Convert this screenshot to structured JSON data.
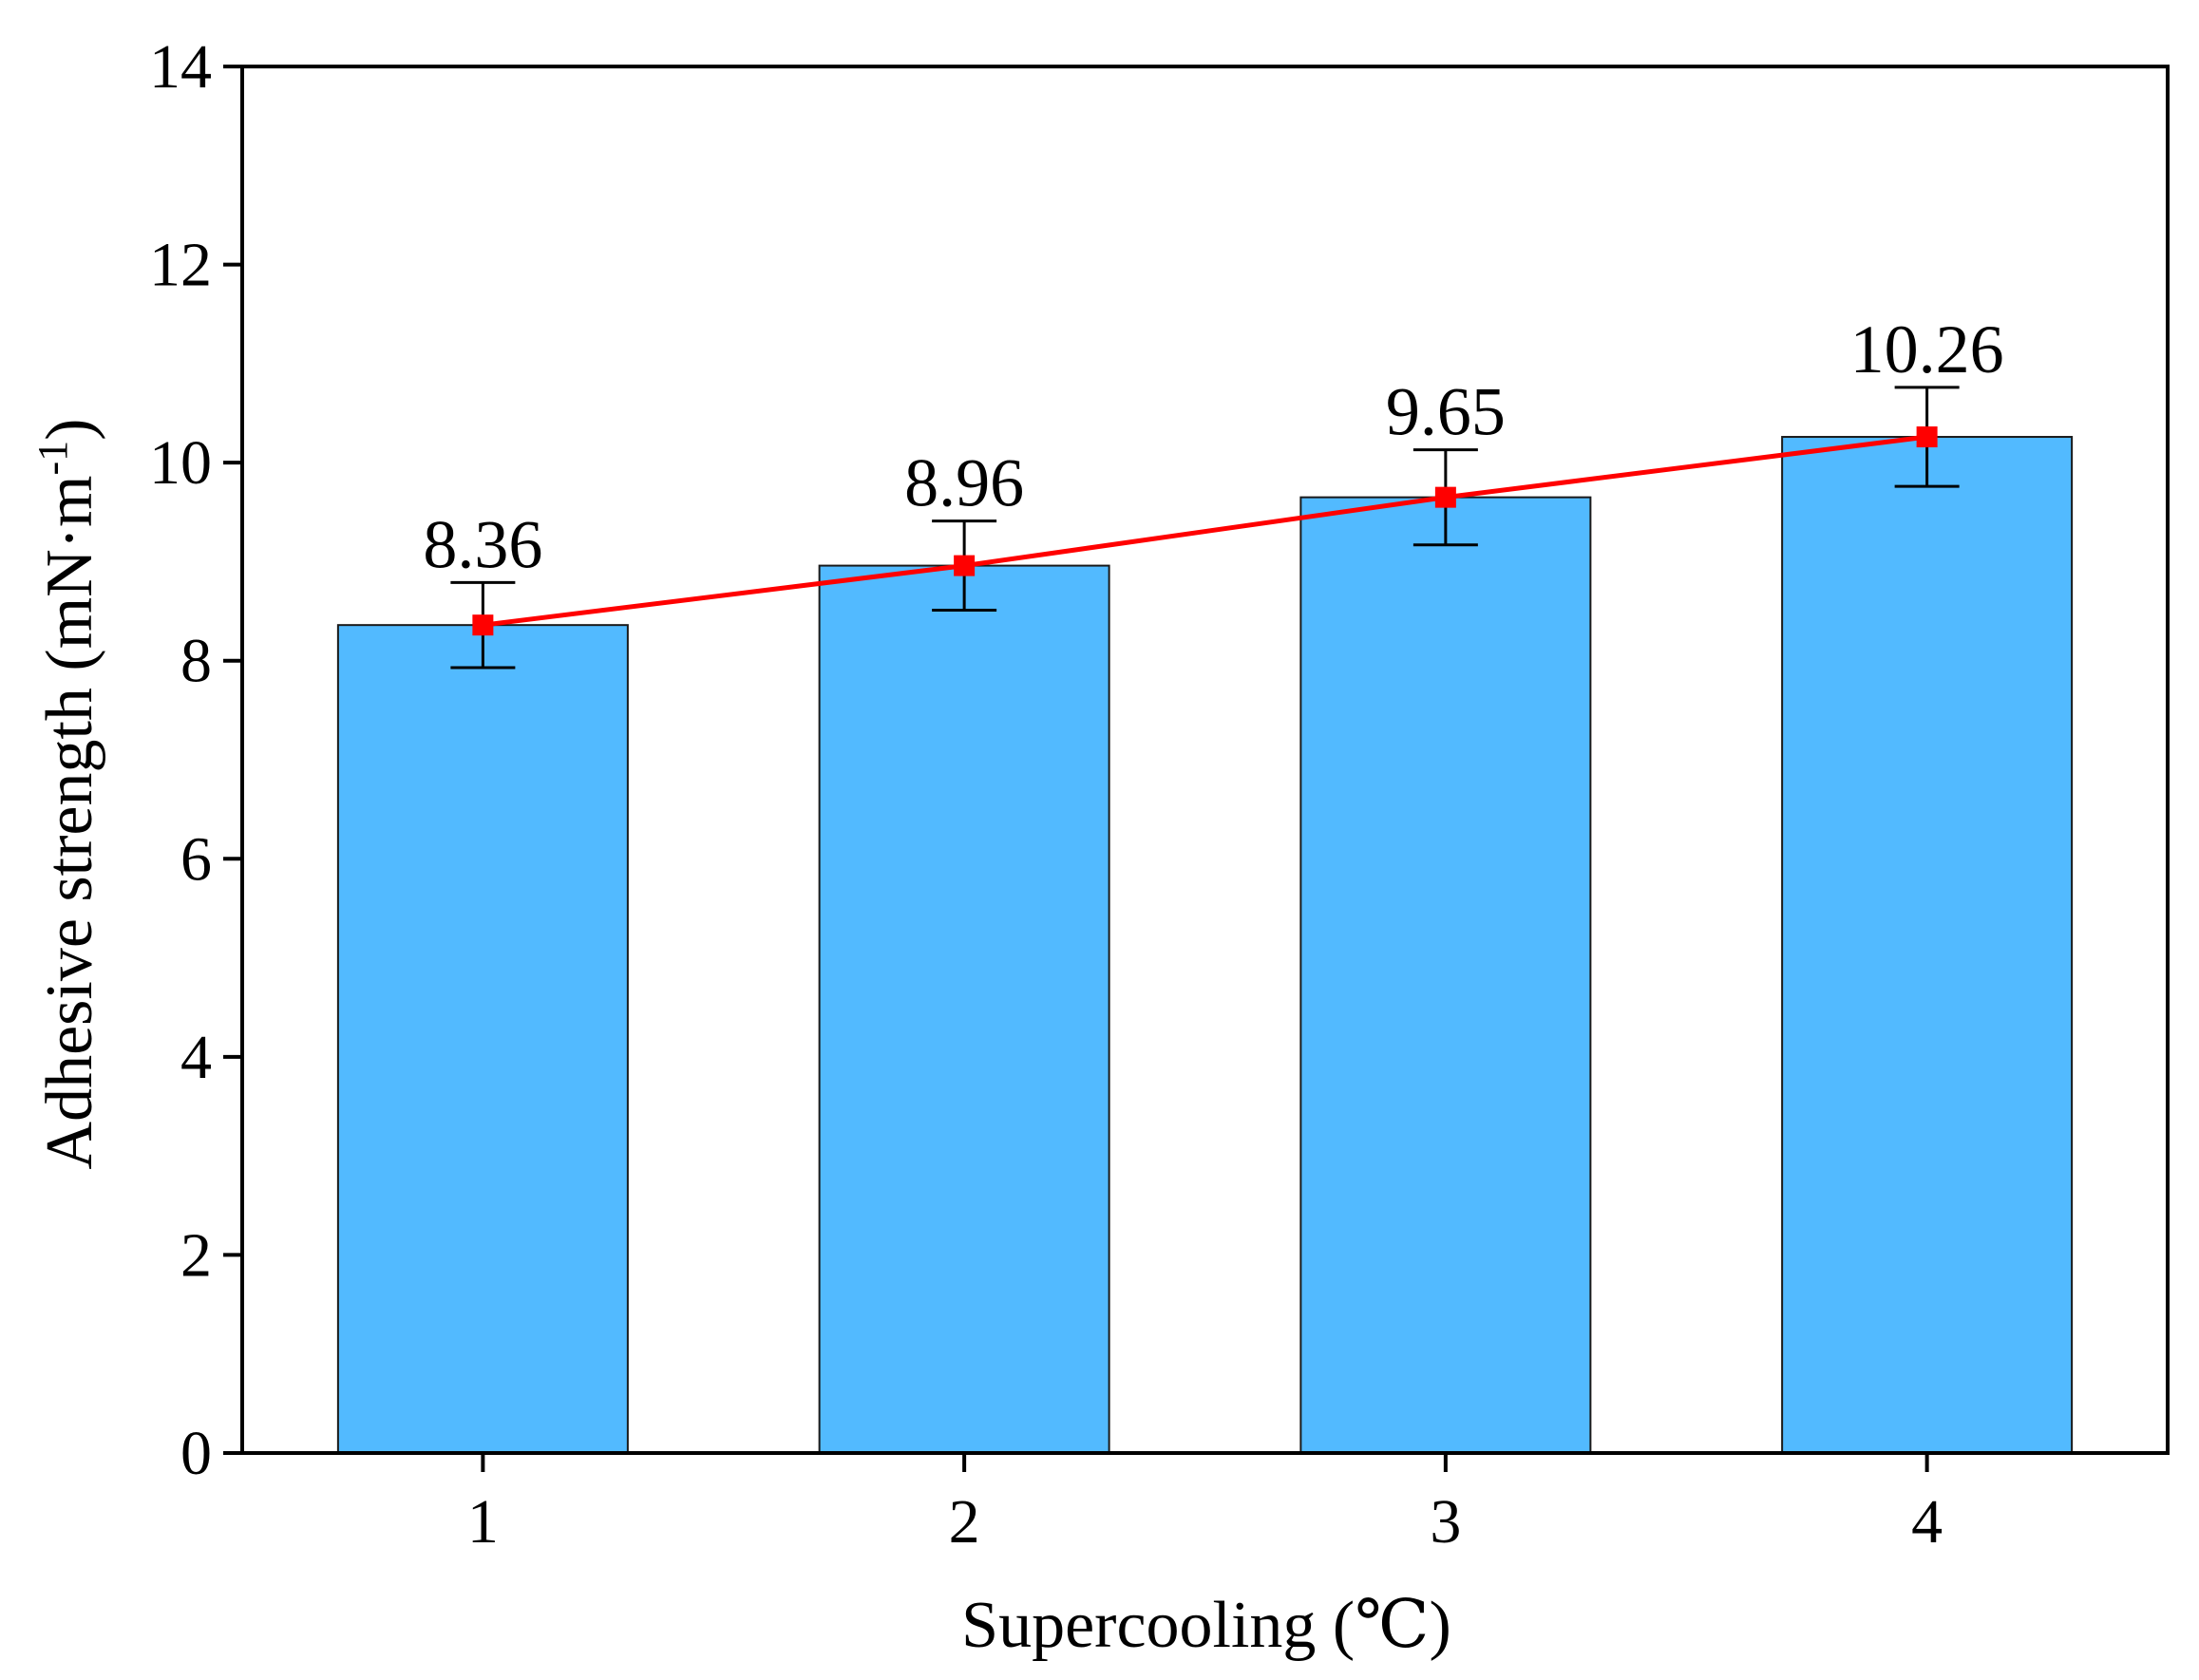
{
  "chart_data": {
    "type": "bar",
    "categories": [
      "1",
      "2",
      "3",
      "4"
    ],
    "values": [
      8.36,
      8.96,
      9.65,
      10.26
    ],
    "data_labels": [
      "8.36",
      "8.96",
      "9.65",
      "10.26"
    ],
    "error": [
      0.43,
      0.45,
      0.48,
      0.5
    ],
    "overlay_line": true,
    "xlabel": "Supercooling (℃)",
    "ylabel": "Adhesive strength (mN·m",
    "ylabel_sup": "-1",
    "ylabel_close": ")",
    "ylim": [
      0,
      14
    ],
    "yticks": [
      0,
      2,
      4,
      6,
      8,
      10,
      12,
      14
    ],
    "bar_color": "#52BAFF",
    "line_color": "#FF0000",
    "grid": false
  }
}
